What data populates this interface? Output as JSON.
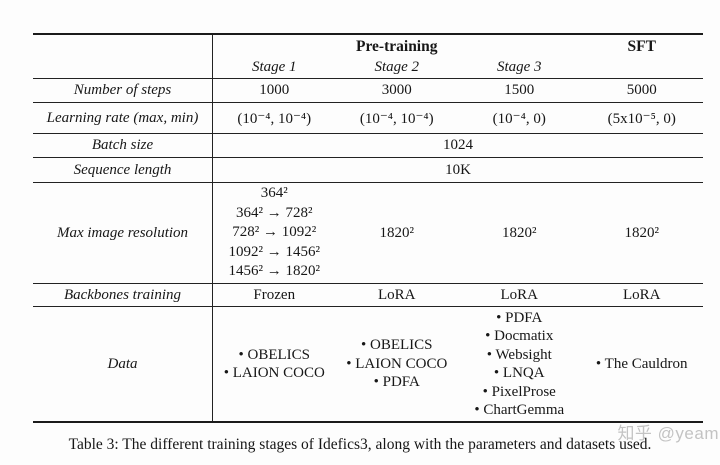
{
  "watermark": "知乎 @yeam",
  "caption": "Table 3: The different training stages of Idefics3, along with the parameters and datasets used.",
  "table": {
    "header": {
      "pretraining": "Pre-training",
      "sft": "SFT",
      "stages": [
        "Stage 1",
        "Stage 2",
        "Stage 3"
      ]
    },
    "rows": {
      "steps": {
        "label": "Number of steps",
        "values": [
          "1000",
          "3000",
          "1500",
          "5000"
        ]
      },
      "lr": {
        "label": "Learning rate (max, min)",
        "values": [
          "(10⁻⁴, 10⁻⁴)",
          "(10⁻⁴, 10⁻⁴)",
          "(10⁻⁴, 0)",
          "(5x10⁻⁵, 0)"
        ]
      },
      "batch": {
        "label": "Batch size",
        "value": "1024"
      },
      "seq": {
        "label": "Sequence length",
        "value": "10K"
      },
      "maxres": {
        "label": "Max image resolution",
        "stage1_lines": [
          "364²",
          "364² → 728²",
          "728² → 1092²",
          "1092² → 1456²",
          "1456² → 1820²"
        ],
        "stage2": "1820²",
        "stage3": "1820²",
        "sft": "1820²"
      },
      "backbones": {
        "label": "Backbones training",
        "values": [
          "Frozen",
          "LoRA",
          "LoRA",
          "LoRA"
        ]
      },
      "data": {
        "label": "Data",
        "stage1": [
          "• OBELICS",
          "• LAION COCO"
        ],
        "stage2": [
          "• OBELICS",
          "• LAION COCO",
          "• PDFA"
        ],
        "stage3": [
          "• PDFA",
          "• Docmatix",
          "• Websight",
          "• LNQA",
          "• PixelProse",
          "• ChartGemma"
        ],
        "sft": [
          "• The Cauldron"
        ]
      }
    }
  }
}
